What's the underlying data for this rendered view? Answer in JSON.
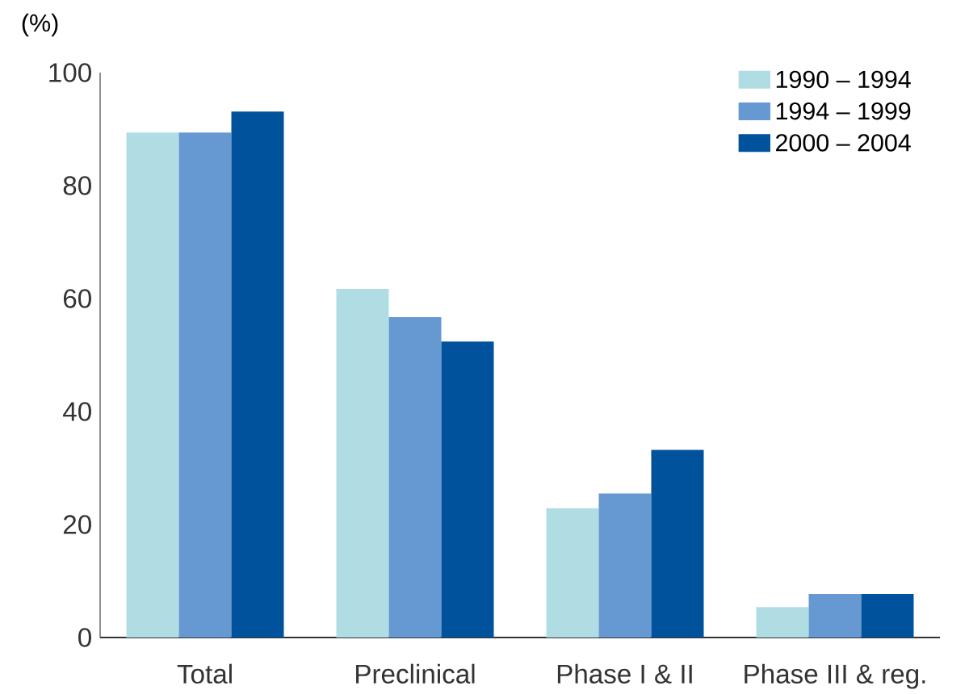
{
  "chart_data": {
    "type": "bar",
    "ylabel": "(%)",
    "categories": [
      "Total",
      "Preclinical",
      "Phase I & II",
      "Phase III & reg."
    ],
    "series": [
      {
        "name": "1990 – 1994",
        "color": "#b0dde4",
        "values": [
          89.4,
          61.7,
          22.9,
          5.4
        ]
      },
      {
        "name": "1994 – 1999",
        "color": "#6699d1",
        "values": [
          89.4,
          56.7,
          25.5,
          7.7
        ]
      },
      {
        "name": "2000 – 2004",
        "color": "#00529c",
        "values": [
          93.1,
          52.4,
          33.2,
          7.7
        ]
      }
    ],
    "ylim": [
      0,
      100
    ],
    "yticks": [
      0,
      20,
      40,
      60,
      80,
      100
    ],
    "grid": false,
    "legend": "top right"
  }
}
